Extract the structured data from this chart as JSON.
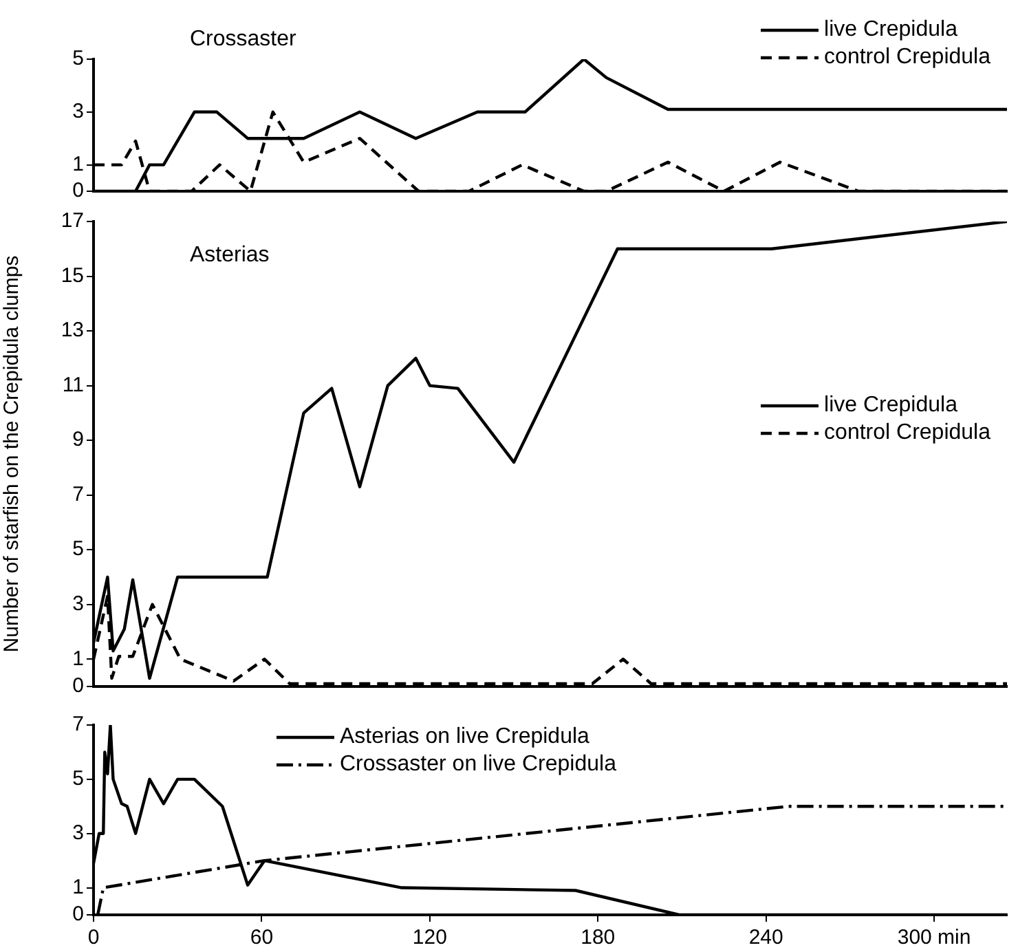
{
  "chart_data": [
    {
      "type": "line",
      "title": "Crossaster",
      "xlim": [
        0,
        326
      ],
      "ylim": [
        0,
        5
      ],
      "yticks": [
        0,
        1,
        3,
        5
      ],
      "tick_labels": "y",
      "legend": "top right",
      "series": [
        {
          "name": "live Crepidula",
          "color": "#000000",
          "line_style": "solid",
          "x": [
            0,
            15,
            20,
            25,
            36,
            44,
            55,
            75,
            95,
            115,
            137,
            154,
            175,
            183,
            205,
            326
          ],
          "values": [
            0,
            0,
            1,
            1,
            3,
            3,
            2,
            2,
            3,
            2,
            3,
            3,
            5,
            4.3,
            3.1,
            3.1
          ]
        },
        {
          "name": "control Crepidula",
          "color": "#000000",
          "line_style": "dashed",
          "x": [
            0,
            10,
            15,
            20,
            35,
            45,
            56,
            64,
            75,
            95,
            116,
            134,
            153,
            175,
            183,
            205,
            225,
            245,
            273,
            326
          ],
          "values": [
            1,
            1,
            1.9,
            0,
            0,
            1,
            0,
            3,
            1.1,
            2,
            0,
            0,
            1,
            0,
            0,
            1.1,
            0,
            1.1,
            0,
            0
          ]
        }
      ]
    },
    {
      "type": "line",
      "title": "Asterias",
      "ylabel": "Number of starfish on the Crepidula clumps",
      "xlim": [
        0,
        326
      ],
      "ylim": [
        0,
        17
      ],
      "yticks": [
        0,
        1,
        3,
        5,
        7,
        9,
        11,
        13,
        15,
        17
      ],
      "tick_labels": "y",
      "legend": "right",
      "series": [
        {
          "name": "live Crepidula",
          "color": "#000000",
          "line_style": "solid",
          "x": [
            0,
            5,
            7,
            11,
            14,
            20,
            30,
            62,
            75,
            85,
            95,
            105,
            115,
            120,
            130,
            150,
            187,
            242,
            326
          ],
          "values": [
            1.6,
            4,
            1.3,
            2.1,
            3.9,
            0.3,
            4,
            4,
            10,
            10.9,
            7.3,
            11,
            12,
            11,
            10.9,
            8.2,
            16,
            16,
            17
          ]
        },
        {
          "name": "control Crepidula",
          "color": "#000000",
          "line_style": "dashed",
          "x": [
            0,
            5,
            6.5,
            9,
            14,
            21,
            31,
            50,
            61,
            70,
            178,
            189,
            199,
            326
          ],
          "values": [
            1,
            3.3,
            0.3,
            1.1,
            1.1,
            3,
            1,
            0.2,
            1,
            0.1,
            0.1,
            1,
            0.1,
            0.1
          ]
        }
      ]
    },
    {
      "type": "line",
      "xlim": [
        0,
        326
      ],
      "xticks": [
        0,
        60,
        120,
        180,
        240,
        {
          "value": 300,
          "label": "300 min"
        }
      ],
      "ylim": [
        0,
        7
      ],
      "yticks": [
        0,
        1,
        3,
        5,
        7
      ],
      "legend": "top",
      "series": [
        {
          "name": "Asterias on live Crepidula",
          "color": "#000000",
          "line_style": "solid",
          "x": [
            0,
            2,
            3.5,
            4,
            5,
            6,
            7,
            10,
            12,
            15,
            20,
            25,
            30,
            36,
            46,
            55,
            61,
            110,
            172,
            209,
            326
          ],
          "values": [
            1.9,
            3,
            3,
            6,
            5.2,
            7,
            5,
            4.1,
            4,
            3,
            5,
            4.1,
            5,
            5,
            4,
            1.1,
            2,
            1,
            0.9,
            0,
            0
          ]
        },
        {
          "name": "Crossaster on live Crepidula",
          "color": "#000000",
          "line_style": "dashdot",
          "x": [
            1.5,
            3.5,
            61,
            248,
            326
          ],
          "values": [
            0,
            1,
            2,
            4,
            4
          ]
        }
      ]
    }
  ]
}
